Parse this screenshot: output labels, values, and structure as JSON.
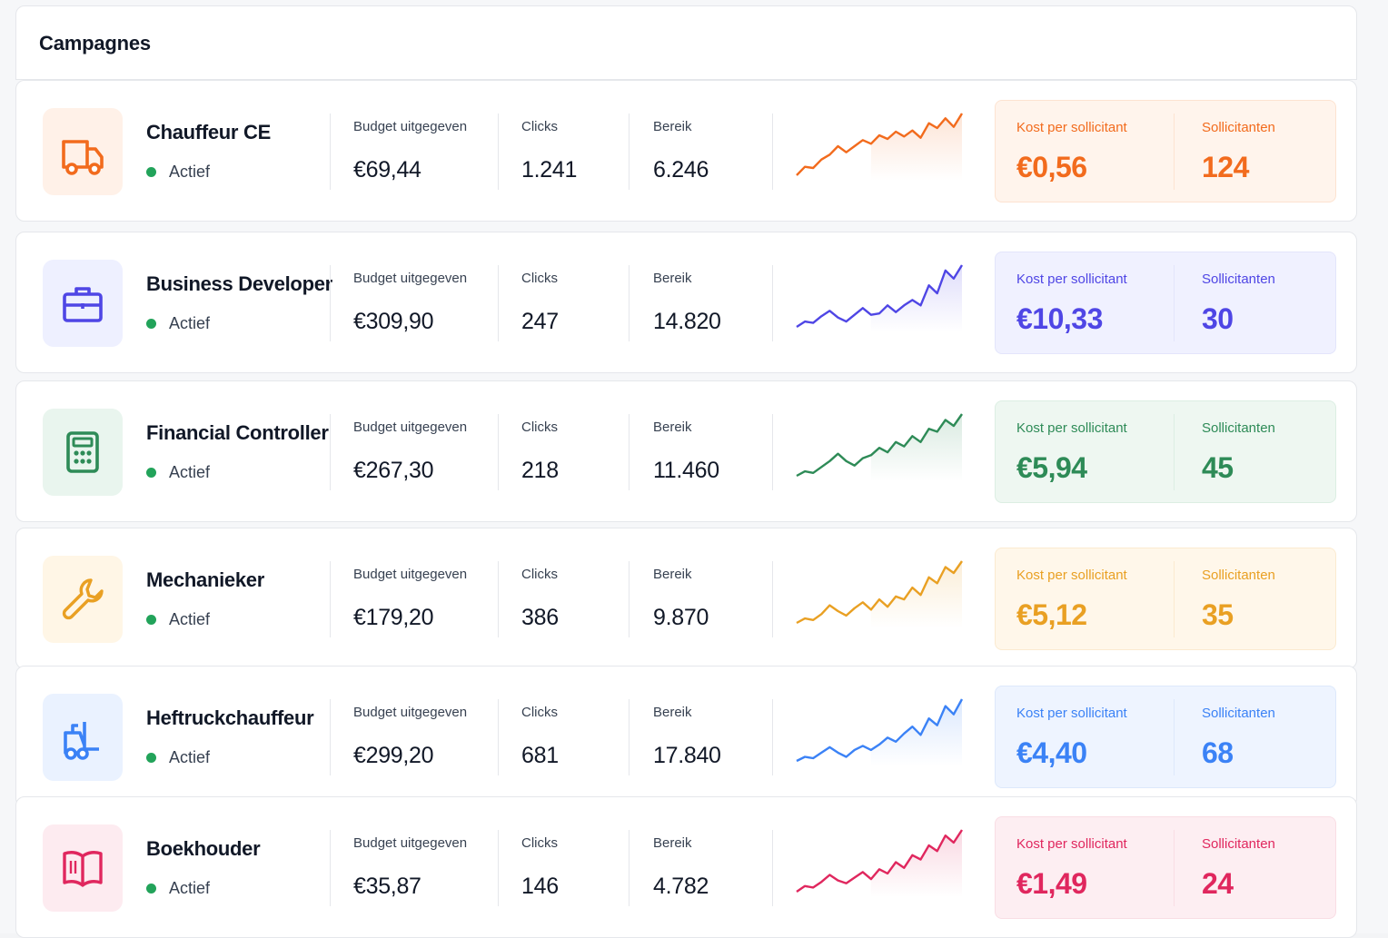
{
  "header": {
    "title": "Campagnes"
  },
  "labels": {
    "budget": "Budget uitgegeven",
    "clicks": "Clicks",
    "reach": "Bereik",
    "cost_per_applicant": "Kost per sollicitant",
    "applicants": "Sollicitanten"
  },
  "campaigns": [
    {
      "title": "Chauffeur CE",
      "status": "Actief",
      "icon": "truck-icon",
      "budget": "€69,44",
      "clicks": "1.241",
      "reach": "6.246",
      "cost_per_applicant": "€0,56",
      "applicants": "124",
      "accent": "#f26b1d",
      "icon_bg": "#fff1e8",
      "kpi_bg": "#fff4ec",
      "kpi_border": "#fde3d1",
      "trend": [
        10,
        24,
        22,
        36,
        44,
        58,
        48,
        58,
        68,
        62,
        76,
        70,
        82,
        74,
        84,
        72,
        96,
        88,
        104,
        90,
        112
      ]
    },
    {
      "title": "Business Developer",
      "status": "Actief",
      "icon": "briefcase-icon",
      "budget": "€309,90",
      "clicks": "247",
      "reach": "14.820",
      "cost_per_applicant": "€10,33",
      "applicants": "30",
      "accent": "#4f46e5",
      "icon_bg": "#eef0ff",
      "kpi_bg": "#f0f1ff",
      "kpi_border": "#e3e5fb",
      "trend": [
        12,
        20,
        18,
        28,
        36,
        26,
        20,
        30,
        40,
        30,
        32,
        44,
        34,
        44,
        52,
        44,
        74,
        62,
        96,
        84,
        104
      ]
    },
    {
      "title": "Financial Controller",
      "status": "Actief",
      "icon": "calculator-icon",
      "budget": "€267,30",
      "clicks": "218",
      "reach": "11.460",
      "cost_per_applicant": "€5,94",
      "applicants": "45",
      "accent": "#2e8b57",
      "icon_bg": "#e9f5ee",
      "kpi_bg": "#eef7f1",
      "kpi_border": "#dceee3",
      "trend": [
        10,
        16,
        14,
        22,
        30,
        40,
        30,
        24,
        34,
        38,
        48,
        42,
        56,
        50,
        64,
        56,
        74,
        70,
        86,
        78,
        94
      ]
    },
    {
      "title": "Mechanieker",
      "status": "Actief",
      "icon": "wrench-icon",
      "budget": "€179,20",
      "clicks": "386",
      "reach": "9.870",
      "cost_per_applicant": "€5,12",
      "applicants": "35",
      "accent": "#e9a023",
      "icon_bg": "#fff6e6",
      "kpi_bg": "#fff7ea",
      "kpi_border": "#fbead0",
      "trend": [
        12,
        18,
        16,
        24,
        36,
        28,
        22,
        32,
        40,
        30,
        44,
        34,
        48,
        44,
        60,
        50,
        74,
        66,
        88,
        80,
        96
      ]
    },
    {
      "title": "Heftruckchauffeur",
      "status": "Actief",
      "icon": "forklift-icon",
      "budget": "€299,20",
      "clicks": "681",
      "reach": "17.840",
      "cost_per_applicant": "€4,40",
      "applicants": "68",
      "accent": "#3b82f6",
      "icon_bg": "#eaf2ff",
      "kpi_bg": "#eef4ff",
      "kpi_border": "#dde8fb",
      "trend": [
        10,
        16,
        14,
        22,
        30,
        22,
        16,
        26,
        32,
        26,
        34,
        44,
        38,
        50,
        60,
        48,
        72,
        62,
        90,
        78,
        100
      ]
    },
    {
      "title": "Boekhouder",
      "status": "Actief",
      "icon": "book-icon",
      "budget": "€35,87",
      "clicks": "146",
      "reach": "4.782",
      "cost_per_applicant": "€1,49",
      "applicants": "24",
      "accent": "#e0275e",
      "icon_bg": "#fdebf0",
      "kpi_bg": "#fdeef2",
      "kpi_border": "#f9dde4",
      "trend": [
        10,
        18,
        16,
        24,
        34,
        26,
        22,
        30,
        38,
        28,
        42,
        36,
        52,
        44,
        62,
        56,
        76,
        68,
        90,
        80,
        98
      ]
    }
  ]
}
